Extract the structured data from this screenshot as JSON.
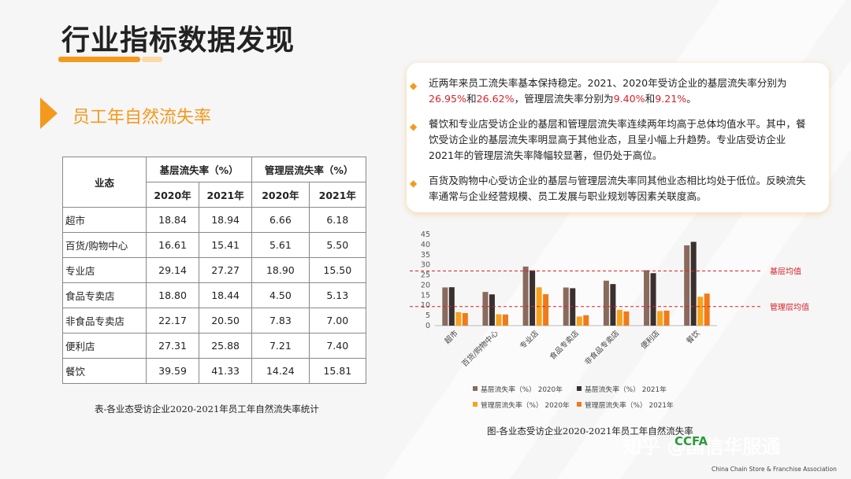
{
  "header": {
    "title": "行业指标数据发现",
    "subtitle": "员工年自然流失率"
  },
  "table": {
    "col_header_main": "业态",
    "group1": "基层流失率（%）",
    "group2": "管理层流失率（%）",
    "years": [
      "2020年",
      "2021年",
      "2020年",
      "2021年"
    ],
    "rows": [
      {
        "name": "超市",
        "v": [
          "18.84",
          "18.94",
          "6.66",
          "6.18"
        ]
      },
      {
        "name": "百货/购物中心",
        "v": [
          "16.61",
          "15.41",
          "5.61",
          "5.50"
        ]
      },
      {
        "name": "专业店",
        "v": [
          "29.14",
          "27.27",
          "18.90",
          "15.50"
        ]
      },
      {
        "name": "食品专卖店",
        "v": [
          "18.80",
          "18.44",
          "4.50",
          "5.13"
        ]
      },
      {
        "name": "非食品专卖店",
        "v": [
          "22.17",
          "20.50",
          "7.83",
          "7.00"
        ]
      },
      {
        "name": "便利店",
        "v": [
          "27.31",
          "25.88",
          "7.21",
          "7.40"
        ]
      },
      {
        "name": "餐饮",
        "v": [
          "39.59",
          "41.33",
          "14.24",
          "15.81"
        ]
      }
    ],
    "caption": "表-各业态受访企业2020-2021年员工年自然流失率统计"
  },
  "bullets": {
    "b1_a": "近两年来员工流失率基本保持稳定。2021、2020年受访企业的基层流失率分别为",
    "b1_v1": "26.95%",
    "b1_b": "和",
    "b1_v2": "26.62%",
    "b1_c": "，管理层流失率分别为",
    "b1_v3": "9.40%",
    "b1_d": "和",
    "b1_v4": "9.21%",
    "b1_e": "。",
    "b2": "餐饮和专业店受访企业的基层和管理层流失率连续两年均高于总体均值水平。其中，餐饮受访企业的基层流失率明显高于其他业态，且呈小幅上升趋势。专业店受访企业2021年的管理层流失率降幅较显著，但仍处于高位。",
    "b3": "百货及购物中心受访企业的基层与管理层流失率同其他业态相比均处于低位。反映流失率通常与企业经营规模、员工发展与职业规划等因素关联度高。"
  },
  "chart_data": {
    "type": "bar",
    "categories": [
      "超市",
      "百货/购物中心",
      "专业店",
      "食品专卖店",
      "非食品专卖店",
      "便利店",
      "餐饮"
    ],
    "series": [
      {
        "name": "基层流失率（%） 2020年",
        "color": "#8a6a5c",
        "values": [
          18.84,
          16.61,
          29.14,
          18.8,
          22.17,
          27.31,
          39.59
        ]
      },
      {
        "name": "基层流失率（%） 2021年",
        "color": "#3a3030",
        "values": [
          18.94,
          15.41,
          27.27,
          18.44,
          20.5,
          25.88,
          41.33
        ]
      },
      {
        "name": "管理层流失率（%） 2020年",
        "color": "#f7a21b",
        "values": [
          6.66,
          5.61,
          18.9,
          4.5,
          7.83,
          7.21,
          14.24
        ]
      },
      {
        "name": "管理层流失率（%） 2021年",
        "color": "#f07a1a",
        "values": [
          6.18,
          5.5,
          15.5,
          5.13,
          7.0,
          7.4,
          15.81
        ]
      }
    ],
    "ylim": [
      0,
      45
    ],
    "yticks": [
      0,
      5,
      10,
      15,
      20,
      25,
      30,
      35,
      40,
      45
    ],
    "reference_lines": [
      {
        "label": "基层均值",
        "value": 26.95,
        "color": "#d9222a"
      },
      {
        "label": "管理层均值",
        "value": 9.4,
        "color": "#d9222a"
      }
    ],
    "legend_position": "bottom",
    "caption": "图-各业态受访企业2020-2021年员工年自然流失率"
  },
  "branding": {
    "watermark": "知乎 @国信华服通",
    "logo": "CCFA",
    "logo_sub": "China Chain Store & Franchise Association"
  }
}
